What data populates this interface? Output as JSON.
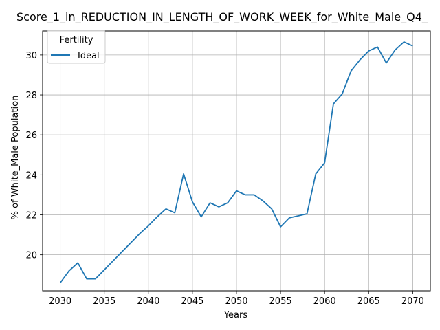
{
  "chart_data": {
    "type": "line",
    "title": "Score_1_in_REDUCTION_IN_LENGTH_OF_WORK_WEEK_for_White_Male_Q4_",
    "xlabel": "Years",
    "ylabel": "% of White_Male Population",
    "xlim": [
      2028,
      2072
    ],
    "ylim": [
      18.2,
      31.2
    ],
    "x_ticks": [
      2030,
      2035,
      2040,
      2045,
      2050,
      2055,
      2060,
      2065,
      2070
    ],
    "y_ticks": [
      20,
      22,
      24,
      26,
      28,
      30
    ],
    "grid": true,
    "legend": {
      "title": "Fertility",
      "position": "top-left"
    },
    "series": [
      {
        "name": "Ideal",
        "color": "#1f77b4",
        "x": [
          2030,
          2031,
          2032,
          2033,
          2034,
          2035,
          2036,
          2037,
          2038,
          2039,
          2040,
          2041,
          2042,
          2043,
          2044,
          2045,
          2046,
          2047,
          2048,
          2049,
          2050,
          2051,
          2052,
          2053,
          2054,
          2055,
          2056,
          2057,
          2058,
          2059,
          2060,
          2061,
          2062,
          2063,
          2064,
          2065,
          2066,
          2067,
          2068,
          2069,
          2070
        ],
        "values": [
          18.6,
          19.2,
          19.6,
          18.8,
          18.8,
          19.25,
          19.7,
          20.15,
          20.6,
          21.05,
          21.45,
          21.9,
          22.3,
          22.1,
          24.05,
          22.65,
          21.9,
          22.6,
          22.4,
          22.6,
          23.2,
          23.0,
          23.0,
          22.7,
          22.3,
          21.4,
          21.85,
          21.95,
          22.05,
          24.05,
          24.6,
          27.55,
          28.05,
          29.2,
          29.75,
          30.2,
          30.4,
          29.6,
          30.25,
          30.65,
          30.45
        ]
      }
    ]
  }
}
